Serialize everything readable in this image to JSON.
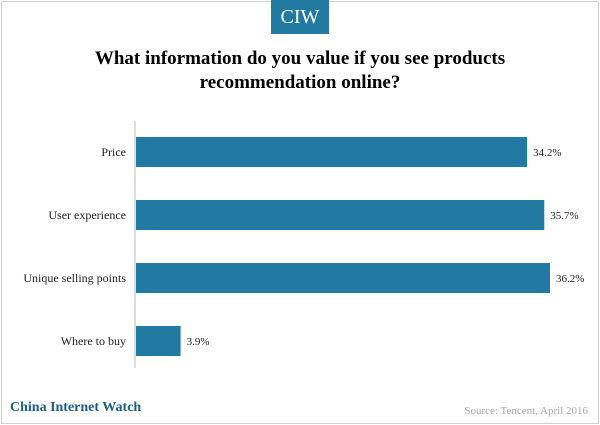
{
  "brand": {
    "logo_text": "CIW",
    "footer_name": "China Internet Watch",
    "accent_color": "#227aa3"
  },
  "source": "Source: Tencent, April 2016",
  "chart_data": {
    "type": "bar",
    "orientation": "horizontal",
    "title": "What information do you value if you see products recommendation online?",
    "categories": [
      "Price",
      "User experience",
      "Unique selling points",
      "Where to buy"
    ],
    "values": [
      34.2,
      35.7,
      36.2,
      3.9
    ],
    "value_labels": [
      "34.2%",
      "35.7%",
      "36.2%",
      "3.9%"
    ],
    "unit": "%",
    "xlim": [
      0,
      36.2
    ],
    "grid": false,
    "legend": "none",
    "bar_color": "#227aa3"
  }
}
